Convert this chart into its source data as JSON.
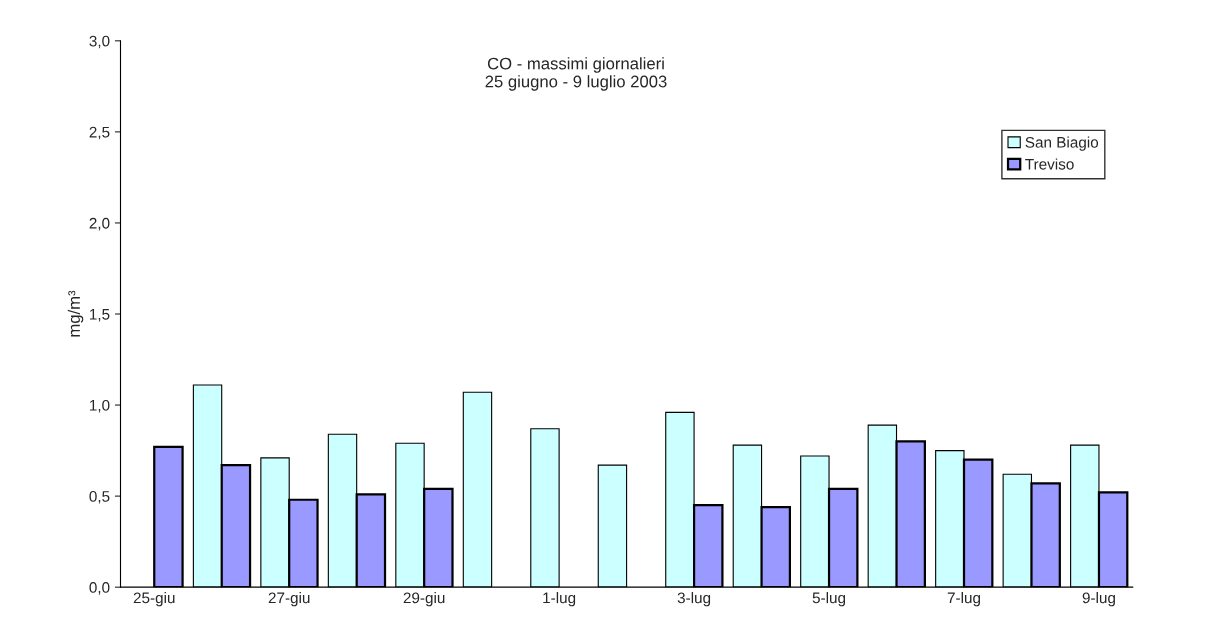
{
  "chart_data": {
    "type": "bar",
    "title": "CO - massimi giornalieri\n25 giugno - 9 luglio 2003",
    "ylabel": "mg/m³",
    "categories": [
      "25-giu",
      null,
      "27-giu",
      null,
      "29-giu",
      null,
      "1-lug",
      null,
      "3-lug",
      null,
      "5-lug",
      null,
      "7-lug",
      null,
      "9-lug"
    ],
    "series": [
      {
        "name": "San Biagio",
        "color": "#ccffff",
        "values": [
          null,
          1.11,
          0.71,
          0.84,
          0.79,
          1.07,
          0.87,
          0.67,
          0.96,
          0.78,
          0.72,
          0.89,
          0.75,
          0.62,
          0.78
        ]
      },
      {
        "name": "Treviso",
        "color": "#9999ff",
        "values": [
          0.77,
          0.67,
          0.48,
          0.51,
          0.54,
          null,
          null,
          null,
          0.45,
          0.44,
          0.54,
          0.8,
          0.7,
          0.57,
          0.52
        ]
      }
    ],
    "ylim": [
      0,
      3
    ],
    "yticks": [
      {
        "value": 0,
        "label": "0,0"
      },
      {
        "value": 0.5,
        "label": "0,5"
      },
      {
        "value": 1,
        "label": "1,0"
      },
      {
        "value": 1.5,
        "label": "1,5"
      },
      {
        "value": 2,
        "label": "2,0"
      },
      {
        "value": 2.5,
        "label": "2,5"
      },
      {
        "value": 3,
        "label": "3,0"
      }
    ],
    "grid": false,
    "legend": "top right"
  }
}
